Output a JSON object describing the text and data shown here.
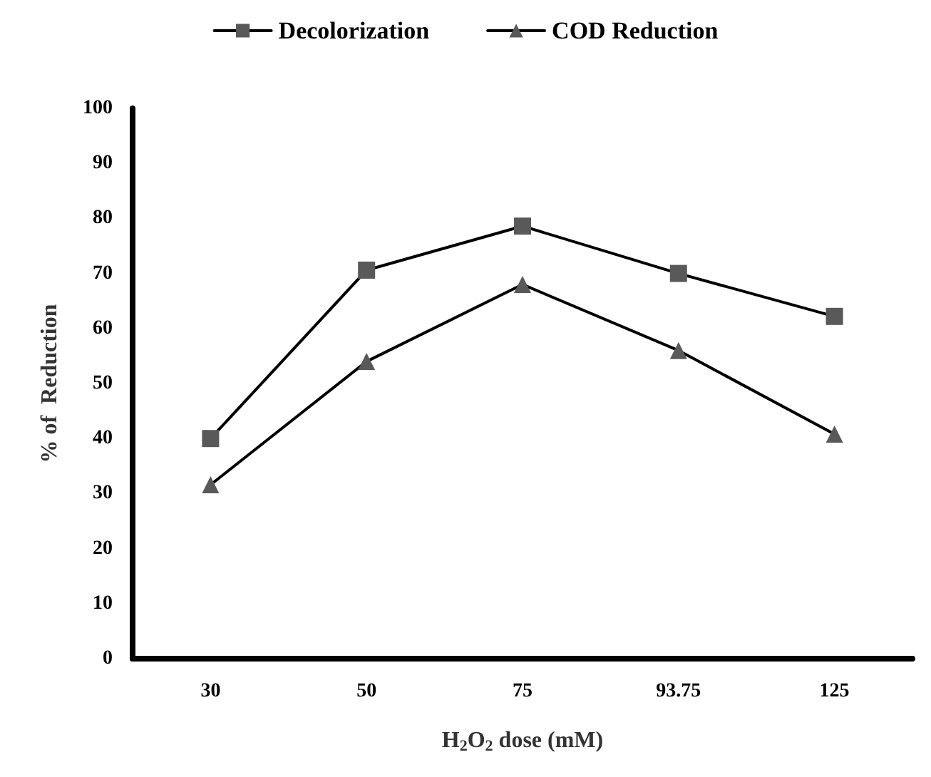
{
  "chart_data": {
    "type": "line",
    "xlabel": "H$_{2}$O$_{2}$ dose (mM)",
    "ylabel": "% of  Reduction",
    "categories": [
      "30",
      "50",
      "75",
      "93.75",
      "125"
    ],
    "series": [
      {
        "name": "Decolorization",
        "color": "#595959",
        "marker": "square",
        "values": [
          40,
          70.6,
          78.6,
          70,
          62.2
        ]
      },
      {
        "name": "COD Reduction",
        "color": "#595959",
        "marker": "triangle",
        "values": [
          31.6,
          54,
          68,
          56,
          40.8
        ]
      }
    ],
    "ylim": [
      0,
      100
    ],
    "yticks": [
      0,
      10,
      20,
      30,
      40,
      50,
      60,
      70,
      80,
      90,
      100
    ],
    "grid": false,
    "legend": "top",
    "line_style": "solid"
  }
}
